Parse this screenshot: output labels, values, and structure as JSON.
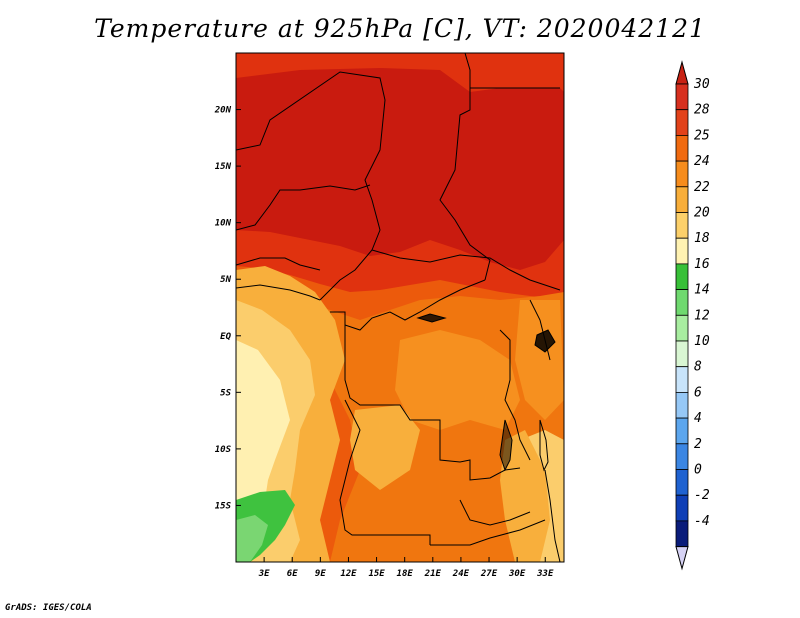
{
  "title": "Temperature at 925hPa [C], VT: 2020042121",
  "footer": "GrADS: IGES/COLA",
  "map": {
    "lon_range": [
      0,
      35
    ],
    "lat_range": [
      -20,
      25
    ],
    "lon_ticks": [
      {
        "value": 3,
        "label": "3E"
      },
      {
        "value": 6,
        "label": "6E"
      },
      {
        "value": 9,
        "label": "9E"
      },
      {
        "value": 12,
        "label": "12E"
      },
      {
        "value": 15,
        "label": "15E"
      },
      {
        "value": 18,
        "label": "18E"
      },
      {
        "value": 21,
        "label": "21E"
      },
      {
        "value": 24,
        "label": "24E"
      },
      {
        "value": 27,
        "label": "27E"
      },
      {
        "value": 30,
        "label": "30E"
      },
      {
        "value": 33,
        "label": "33E"
      }
    ],
    "lat_ticks": [
      {
        "value": 20,
        "label": "20N"
      },
      {
        "value": 15,
        "label": "15N"
      },
      {
        "value": 10,
        "label": "10N"
      },
      {
        "value": 5,
        "label": "5N"
      },
      {
        "value": 0,
        "label": "EQ"
      },
      {
        "value": -5,
        "label": "5S"
      },
      {
        "value": -10,
        "label": "10S"
      },
      {
        "value": -15,
        "label": "15S"
      }
    ]
  },
  "colorbar": {
    "levels": [
      {
        "label": "30",
        "color": "#d7301f"
      },
      {
        "label": "28",
        "color": "#e2421a"
      },
      {
        "label": "25",
        "color": "#f06a10"
      },
      {
        "label": "24",
        "color": "#f68c1c"
      },
      {
        "label": "22",
        "color": "#f8ae3a"
      },
      {
        "label": "20",
        "color": "#fcd06a"
      },
      {
        "label": "18",
        "color": "#fff2b2"
      },
      {
        "label": "16",
        "color": "#38c038"
      },
      {
        "label": "14",
        "color": "#6fd96f"
      },
      {
        "label": "12",
        "color": "#a8eda0"
      },
      {
        "label": "10",
        "color": "#d9f6d3"
      },
      {
        "label": "8",
        "color": "#c8e4fb"
      },
      {
        "label": "6",
        "color": "#96c8f6"
      },
      {
        "label": "4",
        "color": "#5ca6ee"
      },
      {
        "label": "2",
        "color": "#3b86e3"
      },
      {
        "label": "0",
        "color": "#1f62d1"
      },
      {
        "label": "-2",
        "color": "#0f3fb6"
      },
      {
        "label": "-4",
        "color": "#0a1c7a"
      }
    ],
    "top_triangle_color": "#c82214",
    "bottom_triangle_color": "#d6d2f4"
  },
  "field_colors": {
    "t30": "#c91b0f",
    "t28": "#e0320f",
    "t26": "#ec5a0c",
    "t25": "#f0760f",
    "t24": "#f6901f",
    "t22": "#f8af3c",
    "t20": "#fbcd6c",
    "t18": "#fff0b1",
    "t16": "#3fc23f",
    "t14": "#7ad672"
  }
}
